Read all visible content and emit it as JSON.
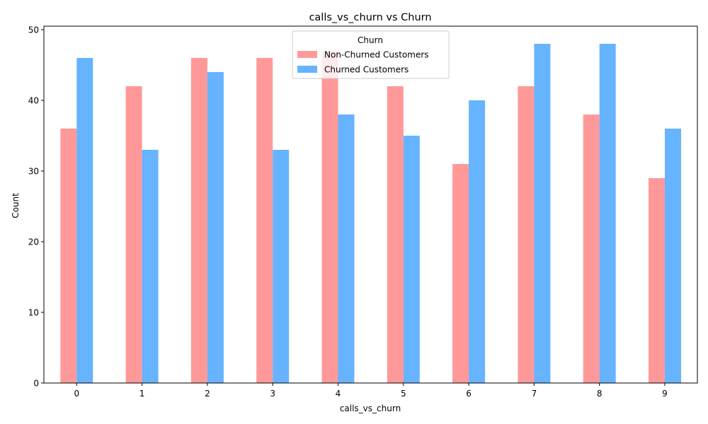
{
  "chart_data": {
    "type": "bar",
    "title": "calls_vs_churn vs Churn",
    "xlabel": "calls_vs_churn",
    "ylabel": "Count",
    "categories": [
      "0",
      "1",
      "2",
      "3",
      "4",
      "5",
      "6",
      "7",
      "8",
      "9"
    ],
    "ylim": [
      0,
      50.5
    ],
    "yticks": [
      "0",
      "10",
      "20",
      "30",
      "40",
      "50"
    ],
    "grid": false,
    "legend": {
      "title": "Churn",
      "placement": "upper center"
    },
    "series": [
      {
        "name": "Non-Churned Customers",
        "color": "#ff9999",
        "values": [
          36,
          42,
          46,
          46,
          47,
          42,
          31,
          42,
          38,
          29
        ]
      },
      {
        "name": "Churned Customers",
        "color": "#66b3ff",
        "values": [
          46,
          33,
          44,
          33,
          38,
          35,
          40,
          48,
          48,
          36
        ]
      }
    ]
  }
}
